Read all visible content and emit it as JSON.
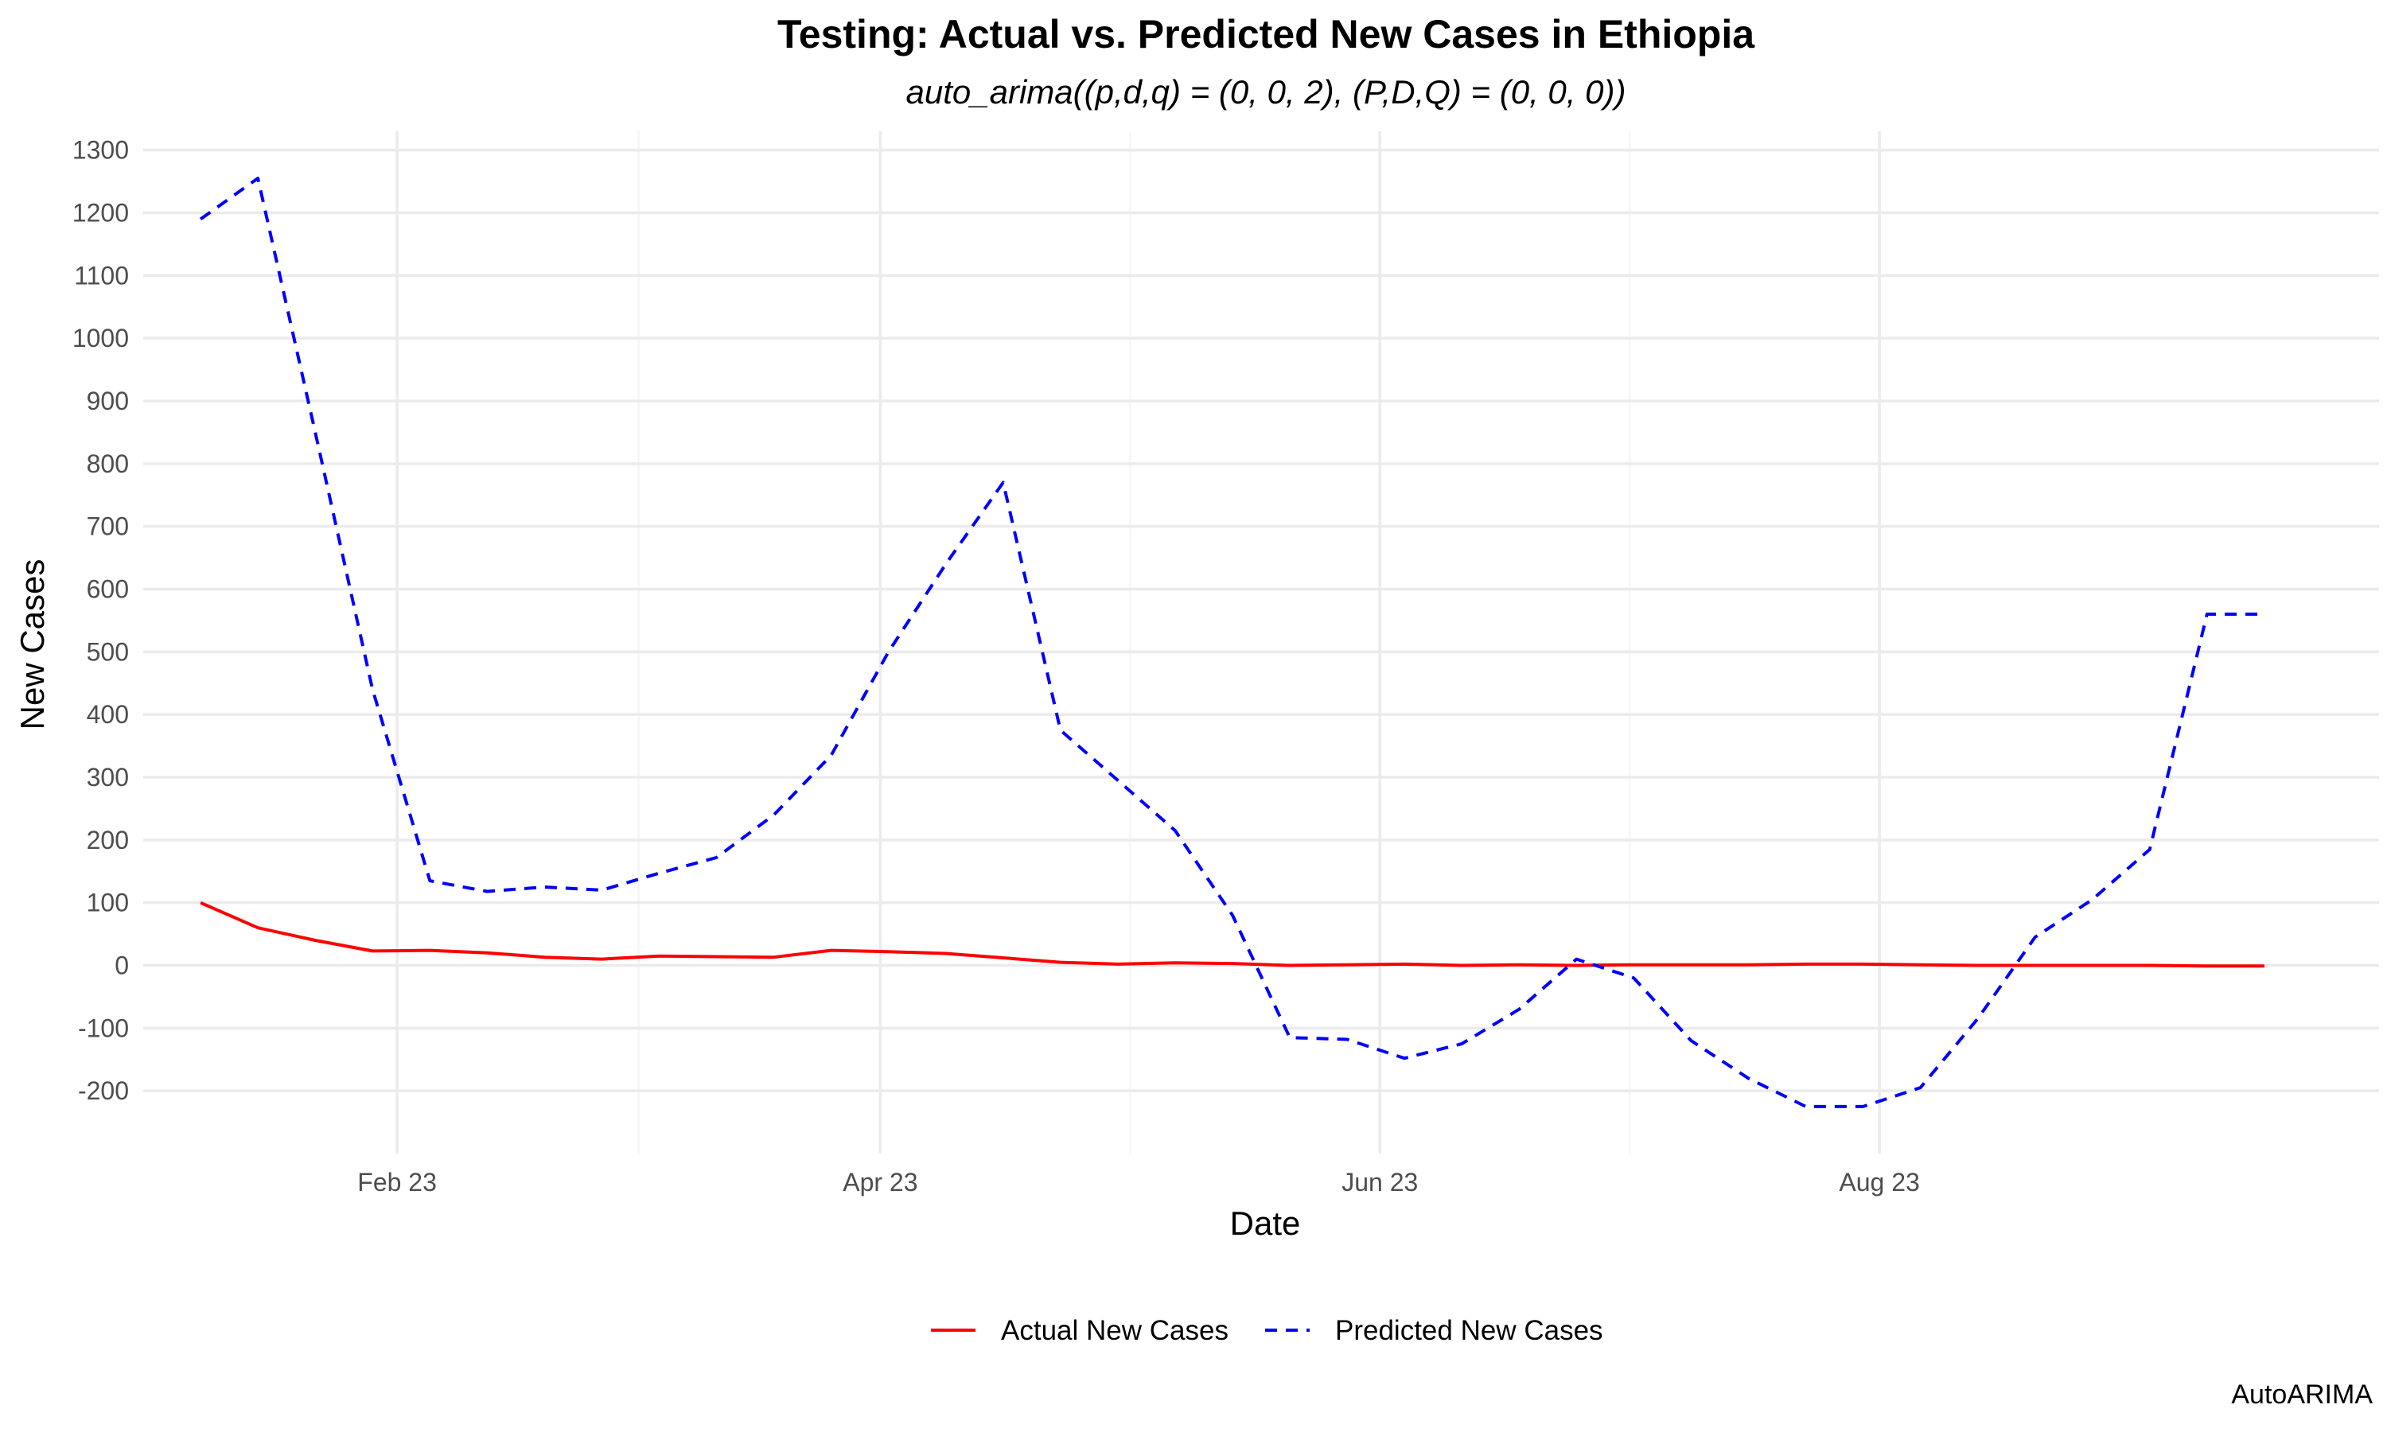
{
  "chart_data": {
    "type": "line",
    "title": "Testing: Actual vs. Predicted New Cases in Ethiopia",
    "subtitle": "auto_arima((p,d,q) = (0, 0, 2), (P,D,Q) = (0, 0, 0))",
    "xlabel": "Date",
    "ylabel": "New Cases",
    "caption": "AutoARIMA",
    "ylim": [
      -300,
      1330
    ],
    "xlim": [
      "2023-01-01",
      "2023-10-01"
    ],
    "y_ticks": [
      -200,
      -100,
      0,
      100,
      200,
      300,
      400,
      500,
      600,
      700,
      800,
      900,
      1000,
      1100,
      1200,
      1300
    ],
    "x_ticks": [
      {
        "date": "2023-02-01",
        "label": "Feb 23"
      },
      {
        "date": "2023-04-01",
        "label": "Apr 23"
      },
      {
        "date": "2023-06-01",
        "label": "Jun 23"
      },
      {
        "date": "2023-08-01",
        "label": "Aug 23"
      }
    ],
    "grid": true,
    "legend_position": "bottom",
    "x": [
      "2023-01-08",
      "2023-01-15",
      "2023-01-22",
      "2023-01-29",
      "2023-02-05",
      "2023-02-12",
      "2023-02-19",
      "2023-02-26",
      "2023-03-05",
      "2023-03-12",
      "2023-03-19",
      "2023-03-26",
      "2023-04-02",
      "2023-04-09",
      "2023-04-16",
      "2023-04-23",
      "2023-04-30",
      "2023-05-07",
      "2023-05-14",
      "2023-05-21",
      "2023-05-28",
      "2023-06-04",
      "2023-06-11",
      "2023-06-18",
      "2023-06-25",
      "2023-07-02",
      "2023-07-09",
      "2023-07-16",
      "2023-07-23",
      "2023-07-30",
      "2023-08-06",
      "2023-08-13",
      "2023-08-20",
      "2023-08-27",
      "2023-09-03",
      "2023-09-10",
      "2023-09-17"
    ],
    "series": [
      {
        "name": "Actual New Cases",
        "color": "#ff0000",
        "dash": "solid",
        "values": [
          100,
          60,
          40,
          23,
          24,
          20,
          13,
          10,
          15,
          14,
          13,
          24,
          22,
          19,
          12,
          5,
          2,
          4,
          3,
          0,
          1,
          2,
          0,
          1,
          0,
          1,
          1,
          1,
          2,
          2,
          1,
          0,
          0,
          0,
          0,
          -1,
          -1
        ]
      },
      {
        "name": "Predicted New Cases",
        "color": "#0000ff",
        "dash": "dashed",
        "values": [
          1190,
          1255,
          850,
          440,
          135,
          118,
          125,
          120,
          147,
          172,
          240,
          335,
          500,
          640,
          770,
          375,
          295,
          215,
          80,
          -115,
          -118,
          -148,
          -125,
          -70,
          10,
          -20,
          -120,
          -180,
          -225,
          -225,
          -195,
          -85,
          45,
          105,
          185,
          560,
          560
        ]
      }
    ]
  }
}
